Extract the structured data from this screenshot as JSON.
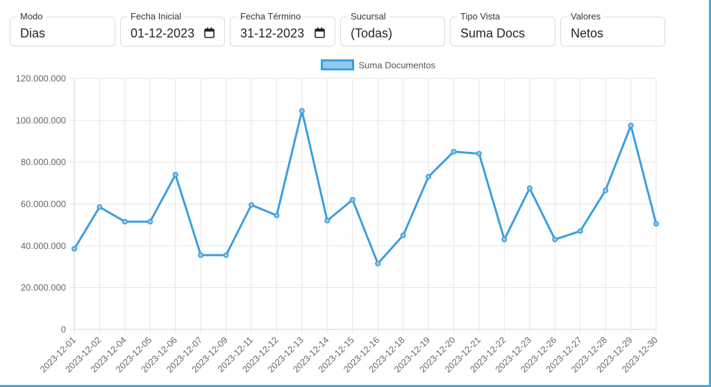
{
  "filters": [
    {
      "label": "Modo",
      "value": "Dias",
      "icon": null
    },
    {
      "label": "Fecha Inicial",
      "value": "01-12-2023",
      "icon": "calendar-icon"
    },
    {
      "label": "Fecha Término",
      "value": "31-12-2023",
      "icon": "calendar-icon"
    },
    {
      "label": "Sucursal",
      "value": "(Todas)",
      "icon": null
    },
    {
      "label": "Tipo Vista",
      "value": "Suma Docs",
      "icon": null
    },
    {
      "label": "Valores",
      "value": "Netos",
      "icon": null
    }
  ],
  "colors": {
    "line": "#3a9de0",
    "legend_fill": "#93c8f0",
    "grid": "#e5e5e5",
    "frame": "#4aa8e0"
  },
  "chart_data": {
    "type": "line",
    "legend_position": "top-center",
    "grid": true,
    "categories": [
      "2023-12-01",
      "2023-12-02",
      "2023-12-04",
      "2023-12-05",
      "2023-12-06",
      "2023-12-07",
      "2023-12-09",
      "2023-12-11",
      "2023-12-12",
      "2023-12-13",
      "2023-12-14",
      "2023-12-15",
      "2023-12-16",
      "2023-12-18",
      "2023-12-19",
      "2023-12-20",
      "2023-12-21",
      "2023-12-22",
      "2023-12-23",
      "2023-12-26",
      "2023-12-27",
      "2023-12-28",
      "2023-12-29",
      "2023-12-30"
    ],
    "series": [
      {
        "name": "Suma Documentos",
        "values": [
          38500000,
          58500000,
          51500000,
          51500000,
          74000000,
          35500000,
          35500000,
          59500000,
          54500000,
          104500000,
          52000000,
          62000000,
          31500000,
          45000000,
          73000000,
          85000000,
          84000000,
          43000000,
          67500000,
          43000000,
          47000000,
          66500000,
          97500000,
          50500000
        ]
      }
    ],
    "ylim": [
      0,
      120000000
    ],
    "yticks": [
      0,
      20000000,
      40000000,
      60000000,
      80000000,
      100000000,
      120000000
    ],
    "ytick_labels": [
      "0",
      "20.000.000",
      "40.000.000",
      "60.000.000",
      "80.000.000",
      "100.000.000",
      "120.000.000"
    ],
    "xlabel": "",
    "ylabel": ""
  }
}
